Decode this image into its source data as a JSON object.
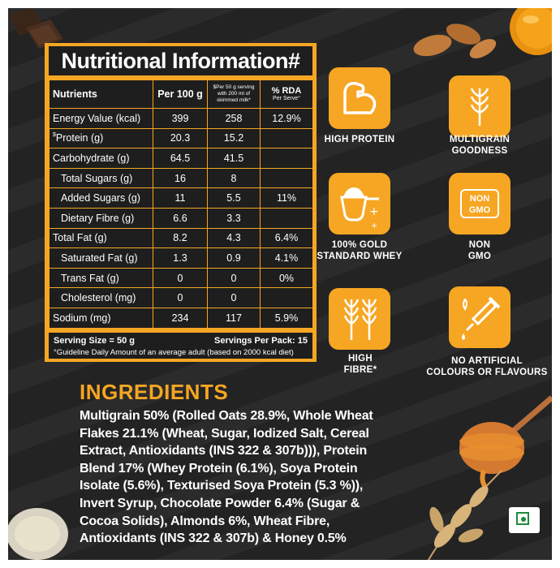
{
  "nutrition": {
    "title": "Nutritional Information#",
    "headers": {
      "nutrients": "Nutrients",
      "per100": "Per 100 g",
      "perServe": "$Per 50 g serving with 200 ml of skimmed milk*",
      "rda": "% RDA",
      "rda_sub": "Per Serve°"
    },
    "rows": [
      {
        "name": "Energy Value (kcal)",
        "per100": "399",
        "perServe": "258",
        "rda": "12.9%"
      },
      {
        "prefix": "$",
        "name": "Protein (g)",
        "per100": "20.3",
        "perServe": "15.2",
        "rda": ""
      },
      {
        "name": "Carbohydrate (g)",
        "per100": "64.5",
        "perServe": "41.5",
        "rda": ""
      },
      {
        "name": "Total Sugars (g)",
        "per100": "16",
        "perServe": "8",
        "rda": ""
      },
      {
        "name": "Added Sugars (g)",
        "per100": "11",
        "perServe": "5.5",
        "rda": "11%"
      },
      {
        "name": "Dietary Fibre (g)",
        "per100": "6.6",
        "perServe": "3.3",
        "rda": ""
      },
      {
        "name": "Total Fat (g)",
        "per100": "8.2",
        "perServe": "4.3",
        "rda": "6.4%"
      },
      {
        "name": "Saturated Fat (g)",
        "per100": "1.3",
        "perServe": "0.9",
        "rda": "4.1%"
      },
      {
        "name": "Trans Fat (g)",
        "per100": "0",
        "perServe": "0",
        "rda": "0%"
      },
      {
        "name": "Cholesterol (mg)",
        "per100": "0",
        "perServe": "0",
        "rda": ""
      },
      {
        "name": "Sodium (mg)",
        "per100": "234",
        "perServe": "117",
        "rda": "5.9%"
      }
    ],
    "serving_size": "Serving Size = 50 g",
    "servings_per_pack": "Servings Per Pack: 15",
    "guideline": "°Guideline Daily Amount of an average adult (based on 2000 kcal diet)"
  },
  "badges": {
    "high_protein": "HIGH PROTEIN",
    "multigrain": "MULTIGRAIN GOODNESS",
    "gold_whey": "100% GOLD STANDARD WHEY",
    "non_gmo": "NON GMO",
    "non_gmo_icon": "NON GMO",
    "high_fibre": "HIGH FIBRE*",
    "no_artificial": "NO ARTIFICIAL COLOURS OR FLAVOURS"
  },
  "ingredients": {
    "title": "INGREDIENTS",
    "lines": [
      "Multigrain 50% (Rolled Oats 28.9%, Whole Wheat",
      "Flakes 21.1% (Wheat, Sugar, Iodized Salt, Cereal",
      "Extract, Antioxidants (INS 322 & 307b))), Protein",
      "Blend 17% (Whey Protein (6.1%), Soya Protein",
      "Isolate (5.6%), Texturised Soya Protein (5.3 %)),",
      "Invert Syrup, Chocolate Powder 6.4% (Sugar &",
      "Cocoa Solids), Almonds 6%, Wheat Fibre,",
      "Antioxidants (INS 322 & 307b) & Honey 0.5%"
    ]
  },
  "colors": {
    "accent": "#f6a623",
    "background": "#232323",
    "panel": "#1e1e1e",
    "veg_mark": "#1f8a3b"
  },
  "icons": [
    "muscle-icon",
    "wheat-icon",
    "whey-scoop-icon",
    "non-gmo-icon",
    "double-wheat-icon",
    "dropper-icon",
    "veg-mark-icon"
  ]
}
